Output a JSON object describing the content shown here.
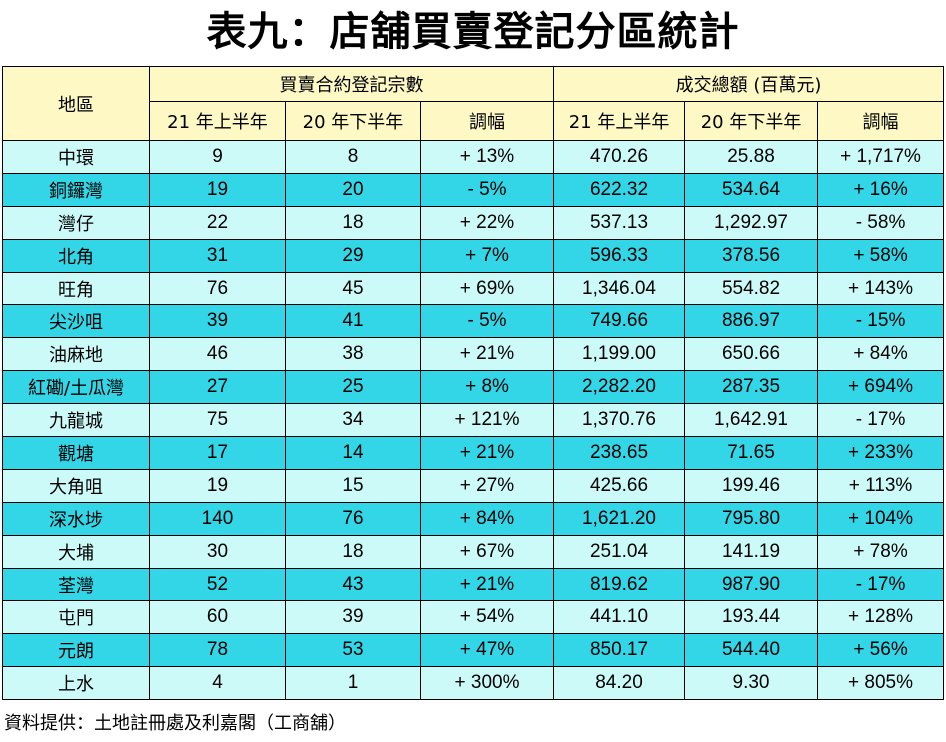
{
  "title": "表九：店舖買賣登記分區統計",
  "header": {
    "district": "地區",
    "group_volume": "買賣合約登記宗數",
    "group_value": "成交總額 (百萬元)",
    "h21": "21 年上半年",
    "h20": "20 年下半年",
    "change": "調幅"
  },
  "rows": [
    {
      "district": "中環",
      "vol21": "9",
      "vol20": "8",
      "vol_chg": "+ 13%",
      "val21": "470.26",
      "val20": "25.88",
      "val_chg": "+ 1,717%"
    },
    {
      "district": "銅鑼灣",
      "vol21": "19",
      "vol20": "20",
      "vol_chg": "- 5%",
      "val21": "622.32",
      "val20": "534.64",
      "val_chg": "+ 16%"
    },
    {
      "district": "灣仔",
      "vol21": "22",
      "vol20": "18",
      "vol_chg": "+ 22%",
      "val21": "537.13",
      "val20": "1,292.97",
      "val_chg": "- 58%"
    },
    {
      "district": "北角",
      "vol21": "31",
      "vol20": "29",
      "vol_chg": "+ 7%",
      "val21": "596.33",
      "val20": "378.56",
      "val_chg": "+ 58%"
    },
    {
      "district": "旺角",
      "vol21": "76",
      "vol20": "45",
      "vol_chg": "+ 69%",
      "val21": "1,346.04",
      "val20": "554.82",
      "val_chg": "+ 143%"
    },
    {
      "district": "尖沙咀",
      "vol21": "39",
      "vol20": "41",
      "vol_chg": "- 5%",
      "val21": "749.66",
      "val20": "886.97",
      "val_chg": "- 15%"
    },
    {
      "district": "油麻地",
      "vol21": "46",
      "vol20": "38",
      "vol_chg": "+ 21%",
      "val21": "1,199.00",
      "val20": "650.66",
      "val_chg": "+ 84%"
    },
    {
      "district": "紅磡/土瓜灣",
      "vol21": "27",
      "vol20": "25",
      "vol_chg": "+ 8%",
      "val21": "2,282.20",
      "val20": "287.35",
      "val_chg": "+ 694%"
    },
    {
      "district": "九龍城",
      "vol21": "75",
      "vol20": "34",
      "vol_chg": "+ 121%",
      "val21": "1,370.76",
      "val20": "1,642.91",
      "val_chg": "- 17%"
    },
    {
      "district": "觀塘",
      "vol21": "17",
      "vol20": "14",
      "vol_chg": "+ 21%",
      "val21": "238.65",
      "val20": "71.65",
      "val_chg": "+ 233%"
    },
    {
      "district": "大角咀",
      "vol21": "19",
      "vol20": "15",
      "vol_chg": "+ 27%",
      "val21": "425.66",
      "val20": "199.46",
      "val_chg": "+ 113%"
    },
    {
      "district": "深水埗",
      "vol21": "140",
      "vol20": "76",
      "vol_chg": "+ 84%",
      "val21": "1,621.20",
      "val20": "795.80",
      "val_chg": "+ 104%"
    },
    {
      "district": "大埔",
      "vol21": "30",
      "vol20": "18",
      "vol_chg": "+ 67%",
      "val21": "251.04",
      "val20": "141.19",
      "val_chg": "+ 78%"
    },
    {
      "district": "荃灣",
      "vol21": "52",
      "vol20": "43",
      "vol_chg": "+ 21%",
      "val21": "819.62",
      "val20": "987.90",
      "val_chg": "- 17%"
    },
    {
      "district": "屯門",
      "vol21": "60",
      "vol20": "39",
      "vol_chg": "+ 54%",
      "val21": "441.10",
      "val20": "193.44",
      "val_chg": "+ 128%"
    },
    {
      "district": "元朗",
      "vol21": "78",
      "vol20": "53",
      "vol_chg": "+ 47%",
      "val21": "850.17",
      "val20": "544.40",
      "val_chg": "+ 56%"
    },
    {
      "district": "上水",
      "vol21": "4",
      "vol20": "1",
      "vol_chg": "+ 300%",
      "val21": "84.20",
      "val20": "9.30",
      "val_chg": "+ 805%"
    }
  ],
  "source": "資料提供：土地註冊處及利嘉閣（工商舖）",
  "colors": {
    "header_bg": "#fdf8c4",
    "row_light": "#ccfaf8",
    "row_dark": "#33d6e6"
  }
}
